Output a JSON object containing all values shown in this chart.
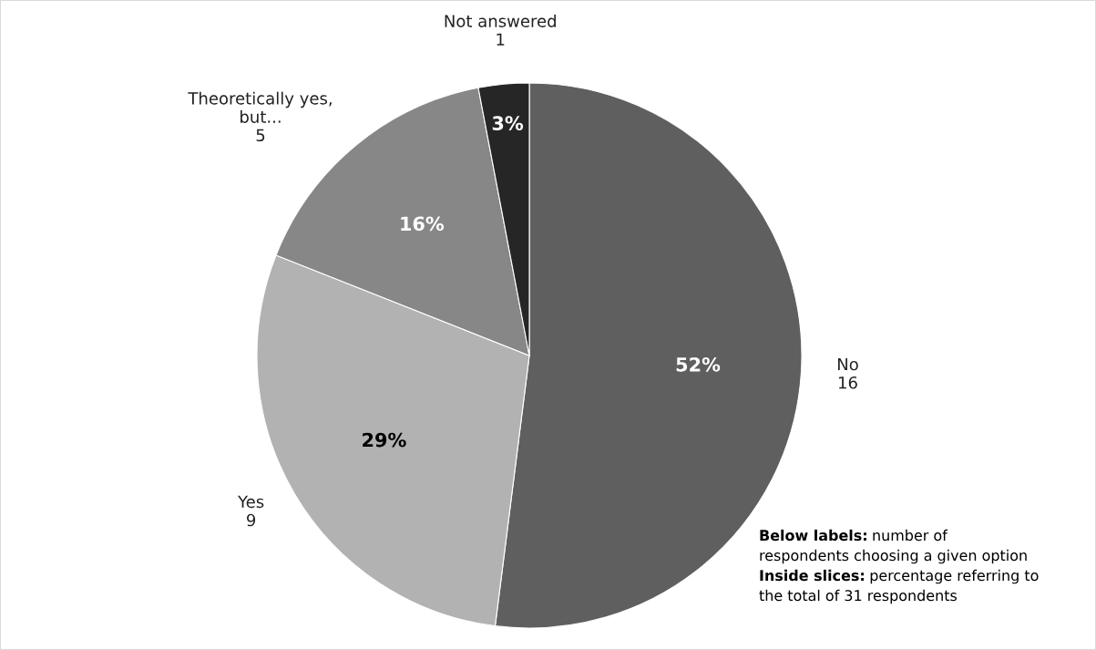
{
  "chart_data": {
    "type": "pie",
    "categories": [
      "No\n16",
      "Yes\n9",
      "Theoretically yes,\nbut...\n5",
      "Not answered\n1"
    ],
    "values": [
      52,
      29,
      16,
      3
    ],
    "colors": [
      "#5f5f5f",
      "#b2b2b2",
      "#878787",
      "#262626"
    ],
    "value_labels": [
      "52%",
      "29%",
      "16%",
      "3%"
    ],
    "annotations": [
      "Below labels: number of\nrespondents choosing a given option",
      "Inside slices: percentage referring to\nthe total of 31 respondents"
    ]
  }
}
